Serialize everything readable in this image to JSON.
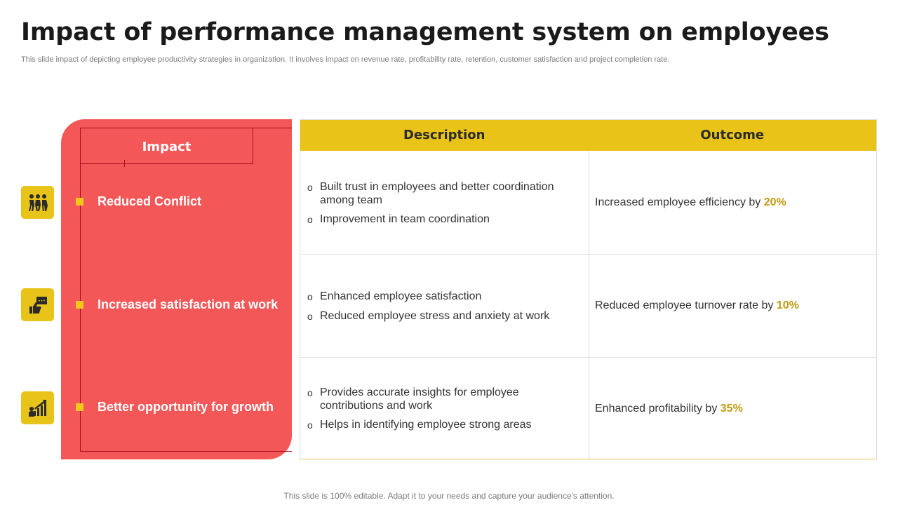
{
  "slide": {
    "title": "Impact of performance management system on employees",
    "subtitle": "This slide impact of depicting employee productivity strategies in organization. It involves impact on revenue rate,  profitability rate,  retention,  customer satisfaction and project completion rate.",
    "footer": "This slide is 100% editable. Adapt it to your needs and capture your audience's attention."
  },
  "impact": {
    "heading": "Impact",
    "items": [
      {
        "label": "Reduced Conflict",
        "icon": "team-conflict-icon"
      },
      {
        "label": "Increased satisfaction at work",
        "icon": "thumbs-up-chat-icon"
      },
      {
        "label": "Better opportunity for growth",
        "icon": "growth-chart-icon"
      }
    ]
  },
  "table": {
    "headers": {
      "description": "Description",
      "outcome": "Outcome"
    },
    "rows": [
      {
        "description": [
          "Built trust in employees and better coordination among team",
          "Improvement  in team coordination"
        ],
        "outcome_text": "Increased employee efficiency by ",
        "outcome_value": "20%"
      },
      {
        "description": [
          "Enhanced employee satisfaction",
          "Reduced employee stress and anxiety at work"
        ],
        "outcome_text": "Reduced employee turnover  rate by ",
        "outcome_value": "10%"
      },
      {
        "description": [
          "Provides accurate insights for employee contributions and work",
          "Helps in identifying employee strong areas"
        ],
        "outcome_text": "Enhanced profitability by ",
        "outcome_value": "35%"
      }
    ]
  },
  "colors": {
    "accent_yellow": "#e9c318",
    "panel_red": "#f45757",
    "outline_dark_red": "#a80d1a",
    "percent_gold": "#c09a12"
  }
}
